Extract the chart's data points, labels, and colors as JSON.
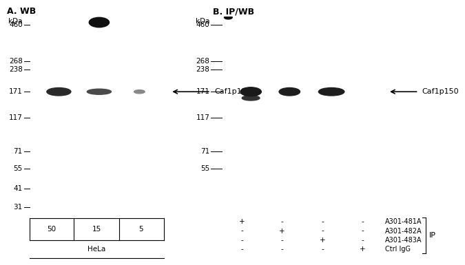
{
  "panel_A_title": "A. WB",
  "panel_B_title": "B. IP/WB",
  "bg_color": "#ffffff",
  "blot_bg_A": "#ececec",
  "blot_bg_B": "#d4d4d4",
  "marker_label": "kDa",
  "arrow_label": "Caf1p150",
  "arrow_kda": 171,
  "panel_A_lanes": [
    "50",
    "15",
    "5"
  ],
  "panel_A_cell_line": "HeLa",
  "panel_B_rows": [
    [
      "+",
      "-",
      "-",
      "-",
      "A301-481A"
    ],
    [
      "-",
      "+",
      "-",
      "-",
      "A301-482A"
    ],
    [
      "-",
      "-",
      "+",
      "-",
      "A301-483A"
    ],
    [
      "-",
      "-",
      "-",
      "+",
      "Ctrl IgG"
    ]
  ],
  "panel_B_IP_label": "IP",
  "kda_A": [
    460,
    268,
    238,
    171,
    117,
    71,
    55,
    41,
    31
  ],
  "kda_A_labels": [
    "460",
    "268",
    "238",
    "171",
    "117",
    "71",
    "55",
    "41",
    "31"
  ],
  "kda_B": [
    460,
    268,
    238,
    171,
    117,
    71,
    55
  ],
  "kda_B_labels": [
    "460",
    "268",
    "238",
    "171",
    "117",
    "71",
    "55"
  ],
  "font_size_title": 9,
  "font_size_marker": 7.5,
  "font_size_label": 8,
  "font_size_table": 7.5
}
